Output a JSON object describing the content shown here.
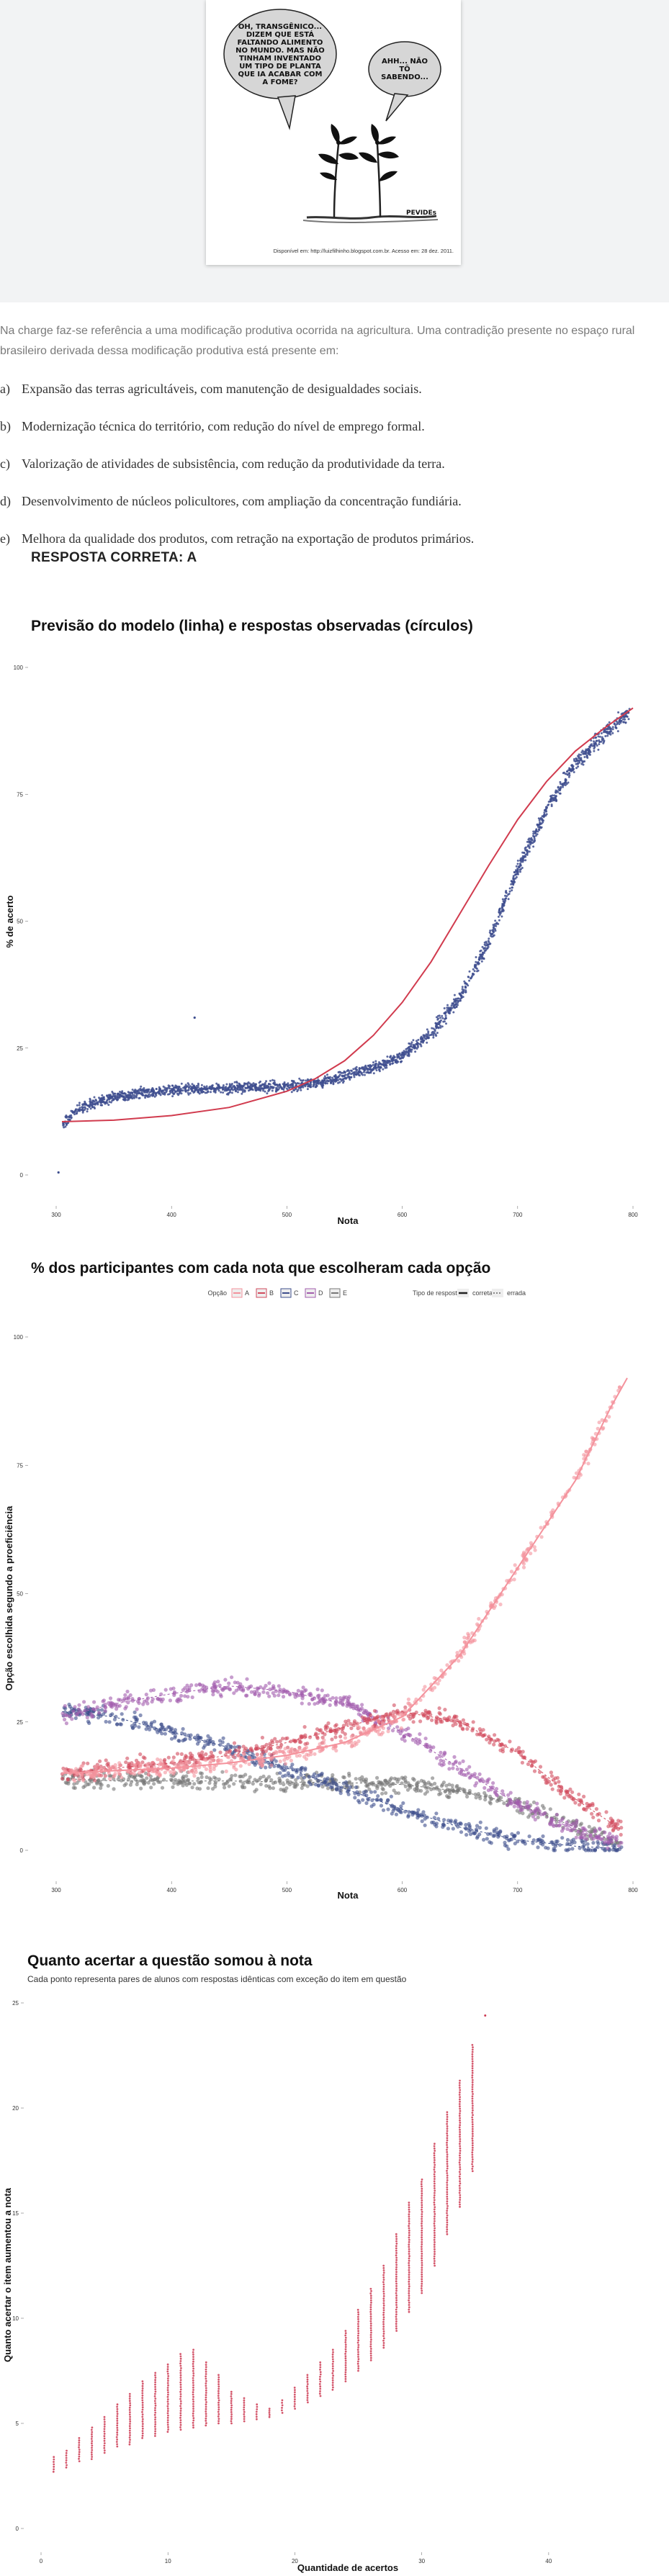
{
  "cartoon": {
    "bubble_left": "OH, TRANSGÊNICO... DIZEM QUE ESTÁ FALTANDO ALIMENTO NO MUNDO. MAS NÃO TINHAM INVENTADO UM TIPO DE PLANTA QUE IA ACABAR COM A FOME?",
    "bubble_right": "AHH... NÃO TÔ SABENDO...",
    "signature": "PEVIDEs",
    "source": "Disponível em: http://luizfilhinho.blogspot.com.br. Acesso em: 28 dez. 2011."
  },
  "question": {
    "intro": "Na charge faz-se referência a uma modificação produtiva ocorrida na agricultura. Uma contradição presente no espaço rural brasileiro derivada dessa modificação produtiva está presente em:",
    "options": [
      {
        "letter": "a)",
        "text": "Expansão das terras agricultáveis, com manutenção de desigualdades sociais."
      },
      {
        "letter": "b)",
        "text": "Modernização técnica do território, com redução do nível de emprego formal."
      },
      {
        "letter": "c)",
        "text": "Valorização de atividades de subsistência, com redução da produtividade da terra."
      },
      {
        "letter": "d)",
        "text": "Desenvolvimento de núcleos policultores, com ampliação da concentração fundiária."
      },
      {
        "letter": "e)",
        "text": "Melhora da qualidade dos produtos, com retração na exportação de produtos primários."
      }
    ],
    "answer": "RESPOSTA CORRETA: A"
  },
  "colors": {
    "hero_bg": "#f2f3f4",
    "model_line": "#d13b4e",
    "observed_points": "#3f4f8f",
    "option_A": "#f4929c",
    "option_B": "#d24b5d",
    "option_C": "#3e4f8c",
    "option_D": "#a25cad",
    "option_E": "#777777",
    "increase_points": "#cc3a52"
  },
  "chart_data": [
    {
      "type": "scatter",
      "title": "Previsão do modelo (linha) e respostas observadas (círculos)",
      "xlabel": "Nota",
      "ylabel": "% de acerto",
      "xlim": [
        300,
        800
      ],
      "ylim": [
        0,
        100
      ],
      "x_ticks": [
        300,
        400,
        500,
        600,
        700,
        800
      ],
      "y_ticks": [
        0,
        25,
        50,
        75,
        100
      ],
      "x_tick_labels": [
        "300",
        "400",
        "500",
        "600",
        "700",
        "800"
      ],
      "y_tick_labels": [
        "0",
        "25",
        "50",
        "75",
        "100"
      ],
      "grid": false,
      "model_curve": {
        "x": [
          305,
          350,
          400,
          450,
          500,
          525,
          550,
          575,
          600,
          625,
          650,
          675,
          700,
          725,
          750,
          775,
          800
        ],
        "y": [
          10.5,
          10.8,
          11.7,
          13.3,
          16.5,
          19.0,
          22.5,
          27.5,
          34.0,
          42.0,
          51.5,
          61.0,
          70.0,
          77.5,
          83.5,
          88.0,
          92.0
        ]
      },
      "observed_trend": {
        "x": [
          305,
          320,
          350,
          400,
          450,
          500,
          525,
          550,
          575,
          600,
          625,
          650,
          675,
          700,
          725,
          750,
          775,
          800
        ],
        "y": [
          10,
          13,
          15.5,
          16.8,
          17.0,
          17.5,
          18.0,
          19.5,
          21.0,
          23.5,
          28.0,
          35.0,
          46.0,
          60.0,
          72.0,
          81.0,
          87.0,
          92.0
        ]
      },
      "outliers": [
        {
          "x": 302,
          "y": 0.5
        },
        {
          "x": 420,
          "y": 31
        }
      ]
    },
    {
      "type": "scatter",
      "title": "% dos participantes com cada nota que escolheram cada opção",
      "xlabel": "Nota",
      "ylabel": "Opção escolhida segundo a proeficiência",
      "xlim": [
        300,
        800
      ],
      "ylim": [
        0,
        100
      ],
      "x_ticks": [
        300,
        400,
        500,
        600,
        700,
        800
      ],
      "y_ticks": [
        0,
        25,
        50,
        75,
        100
      ],
      "x_tick_labels": [
        "300",
        "400",
        "500",
        "600",
        "700",
        "800"
      ],
      "y_tick_labels": [
        "0",
        "25",
        "50",
        "75",
        "100"
      ],
      "legend": {
        "option_title": "Opção",
        "options": [
          "A",
          "B",
          "C",
          "D",
          "E"
        ],
        "type_title": "Tipo de resposta",
        "types": [
          "correta",
          "errada"
        ],
        "placement": "top"
      },
      "series": [
        {
          "name": "A",
          "answer_type": "correta",
          "x": [
            305,
            350,
            400,
            450,
            500,
            550,
            600,
            650,
            700,
            750,
            780,
            795
          ],
          "y": [
            15,
            15.5,
            16,
            17,
            18.5,
            21,
            26,
            38,
            55,
            72,
            86,
            92
          ]
        },
        {
          "name": "B",
          "answer_type": "errada",
          "x": [
            305,
            350,
            400,
            450,
            500,
            550,
            600,
            650,
            700,
            750,
            790
          ],
          "y": [
            15,
            16,
            17,
            18.5,
            21,
            24,
            27,
            25,
            19,
            10,
            4
          ]
        },
        {
          "name": "C",
          "answer_type": "errada",
          "x": [
            305,
            350,
            400,
            450,
            500,
            550,
            600,
            650,
            700,
            750,
            790
          ],
          "y": [
            27,
            26,
            23,
            20,
            16,
            12,
            8,
            4.5,
            2,
            0.8,
            0.3
          ]
        },
        {
          "name": "D",
          "answer_type": "errada",
          "x": [
            305,
            350,
            400,
            450,
            500,
            550,
            600,
            650,
            700,
            750,
            790
          ],
          "y": [
            26,
            28.5,
            30.5,
            32,
            31,
            28.5,
            23,
            16,
            9,
            4,
            1.5
          ]
        },
        {
          "name": "E",
          "answer_type": "errada",
          "x": [
            305,
            350,
            400,
            450,
            500,
            550,
            600,
            650,
            700,
            750,
            790
          ],
          "y": [
            14,
            13.5,
            13.5,
            13.5,
            13.3,
            13.2,
            12.8,
            11.5,
            9,
            4.5,
            1.5
          ]
        }
      ]
    },
    {
      "type": "scatter",
      "title": "Quanto acertar a questão somou à nota",
      "subtitle": "Cada ponto representa pares de alunos com respostas idênticas com exceção do item em questão",
      "xlabel": "Quantidade de acertos",
      "ylabel": "Quanto acertar o item aumentou a nota",
      "xlim": [
        0,
        45
      ],
      "ylim": [
        0,
        25
      ],
      "x_ticks": [
        0,
        10,
        20,
        30,
        40
      ],
      "y_ticks": [
        0,
        5,
        10,
        15,
        20,
        25
      ],
      "x_tick_labels": [
        "0",
        "10",
        "20",
        "30",
        "40"
      ],
      "y_tick_labels": [
        "0",
        "5",
        "10",
        "15",
        "20",
        "25"
      ],
      "columns": [
        {
          "x": 1,
          "min": 2.7,
          "max": 3.4
        },
        {
          "x": 2,
          "min": 2.9,
          "max": 3.7
        },
        {
          "x": 3,
          "min": 3.2,
          "max": 4.3
        },
        {
          "x": 4,
          "min": 3.3,
          "max": 4.8
        },
        {
          "x": 5,
          "min": 3.6,
          "max": 5.3
        },
        {
          "x": 6,
          "min": 3.9,
          "max": 5.9
        },
        {
          "x": 7,
          "min": 4.0,
          "max": 6.4
        },
        {
          "x": 8,
          "min": 4.3,
          "max": 7.0
        },
        {
          "x": 9,
          "min": 4.4,
          "max": 7.4
        },
        {
          "x": 10,
          "min": 4.6,
          "max": 7.8
        },
        {
          "x": 11,
          "min": 4.7,
          "max": 8.3
        },
        {
          "x": 12,
          "min": 4.8,
          "max": 8.5
        },
        {
          "x": 13,
          "min": 4.9,
          "max": 7.9
        },
        {
          "x": 14,
          "min": 5.0,
          "max": 7.3
        },
        {
          "x": 15,
          "min": 5.0,
          "max": 6.5
        },
        {
          "x": 16,
          "min": 5.1,
          "max": 6.2
        },
        {
          "x": 17,
          "min": 5.2,
          "max": 5.9
        },
        {
          "x": 18,
          "min": 5.3,
          "max": 5.7
        },
        {
          "x": 19,
          "min": 5.5,
          "max": 6.1
        },
        {
          "x": 20,
          "min": 5.7,
          "max": 6.7
        },
        {
          "x": 21,
          "min": 6.0,
          "max": 7.3
        },
        {
          "x": 22,
          "min": 6.3,
          "max": 7.9
        },
        {
          "x": 23,
          "min": 6.6,
          "max": 8.5
        },
        {
          "x": 24,
          "min": 7.0,
          "max": 9.4
        },
        {
          "x": 25,
          "min": 7.5,
          "max": 10.4
        },
        {
          "x": 26,
          "min": 8.0,
          "max": 11.4
        },
        {
          "x": 27,
          "min": 8.6,
          "max": 12.5
        },
        {
          "x": 28,
          "min": 9.4,
          "max": 14.0
        },
        {
          "x": 29,
          "min": 10.3,
          "max": 15.5
        },
        {
          "x": 30,
          "min": 11.2,
          "max": 16.6
        },
        {
          "x": 31,
          "min": 12.5,
          "max": 18.3
        },
        {
          "x": 32,
          "min": 14.0,
          "max": 19.8
        },
        {
          "x": 33,
          "min": 15.3,
          "max": 21.3
        },
        {
          "x": 34,
          "min": 17.0,
          "max": 23.0
        }
      ],
      "top_outlier": {
        "x": 35,
        "y": 24.4
      }
    }
  ]
}
